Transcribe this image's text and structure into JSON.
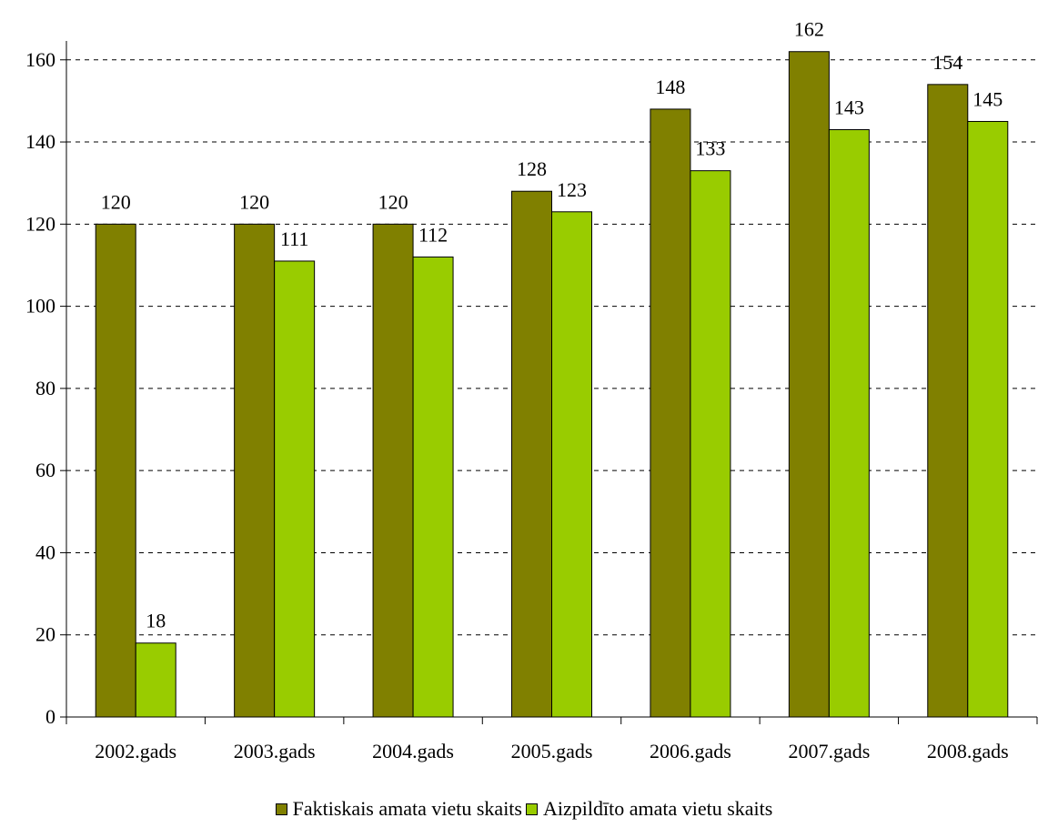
{
  "chart_data": {
    "type": "bar",
    "categories": [
      "2002.gads",
      "2003.gads",
      "2004.gads",
      "2005.gads",
      "2006.gads",
      "2007.gads",
      "2008.gads"
    ],
    "series": [
      {
        "name": "Faktiskais amata vietu skaits",
        "values": [
          120,
          120,
          120,
          128,
          148,
          162,
          154
        ],
        "color": "#808000"
      },
      {
        "name": "Aizpildīto amata vietu skaits",
        "values": [
          18,
          111,
          112,
          123,
          133,
          143,
          145
        ],
        "color": "#99CC00"
      }
    ],
    "title": "",
    "xlabel": "",
    "ylabel": "",
    "ylim": [
      0,
      160
    ],
    "yticks": [
      0,
      20,
      40,
      60,
      80,
      100,
      120,
      140,
      160
    ],
    "grid": "horizontal-dashed",
    "legend_position": "bottom"
  }
}
